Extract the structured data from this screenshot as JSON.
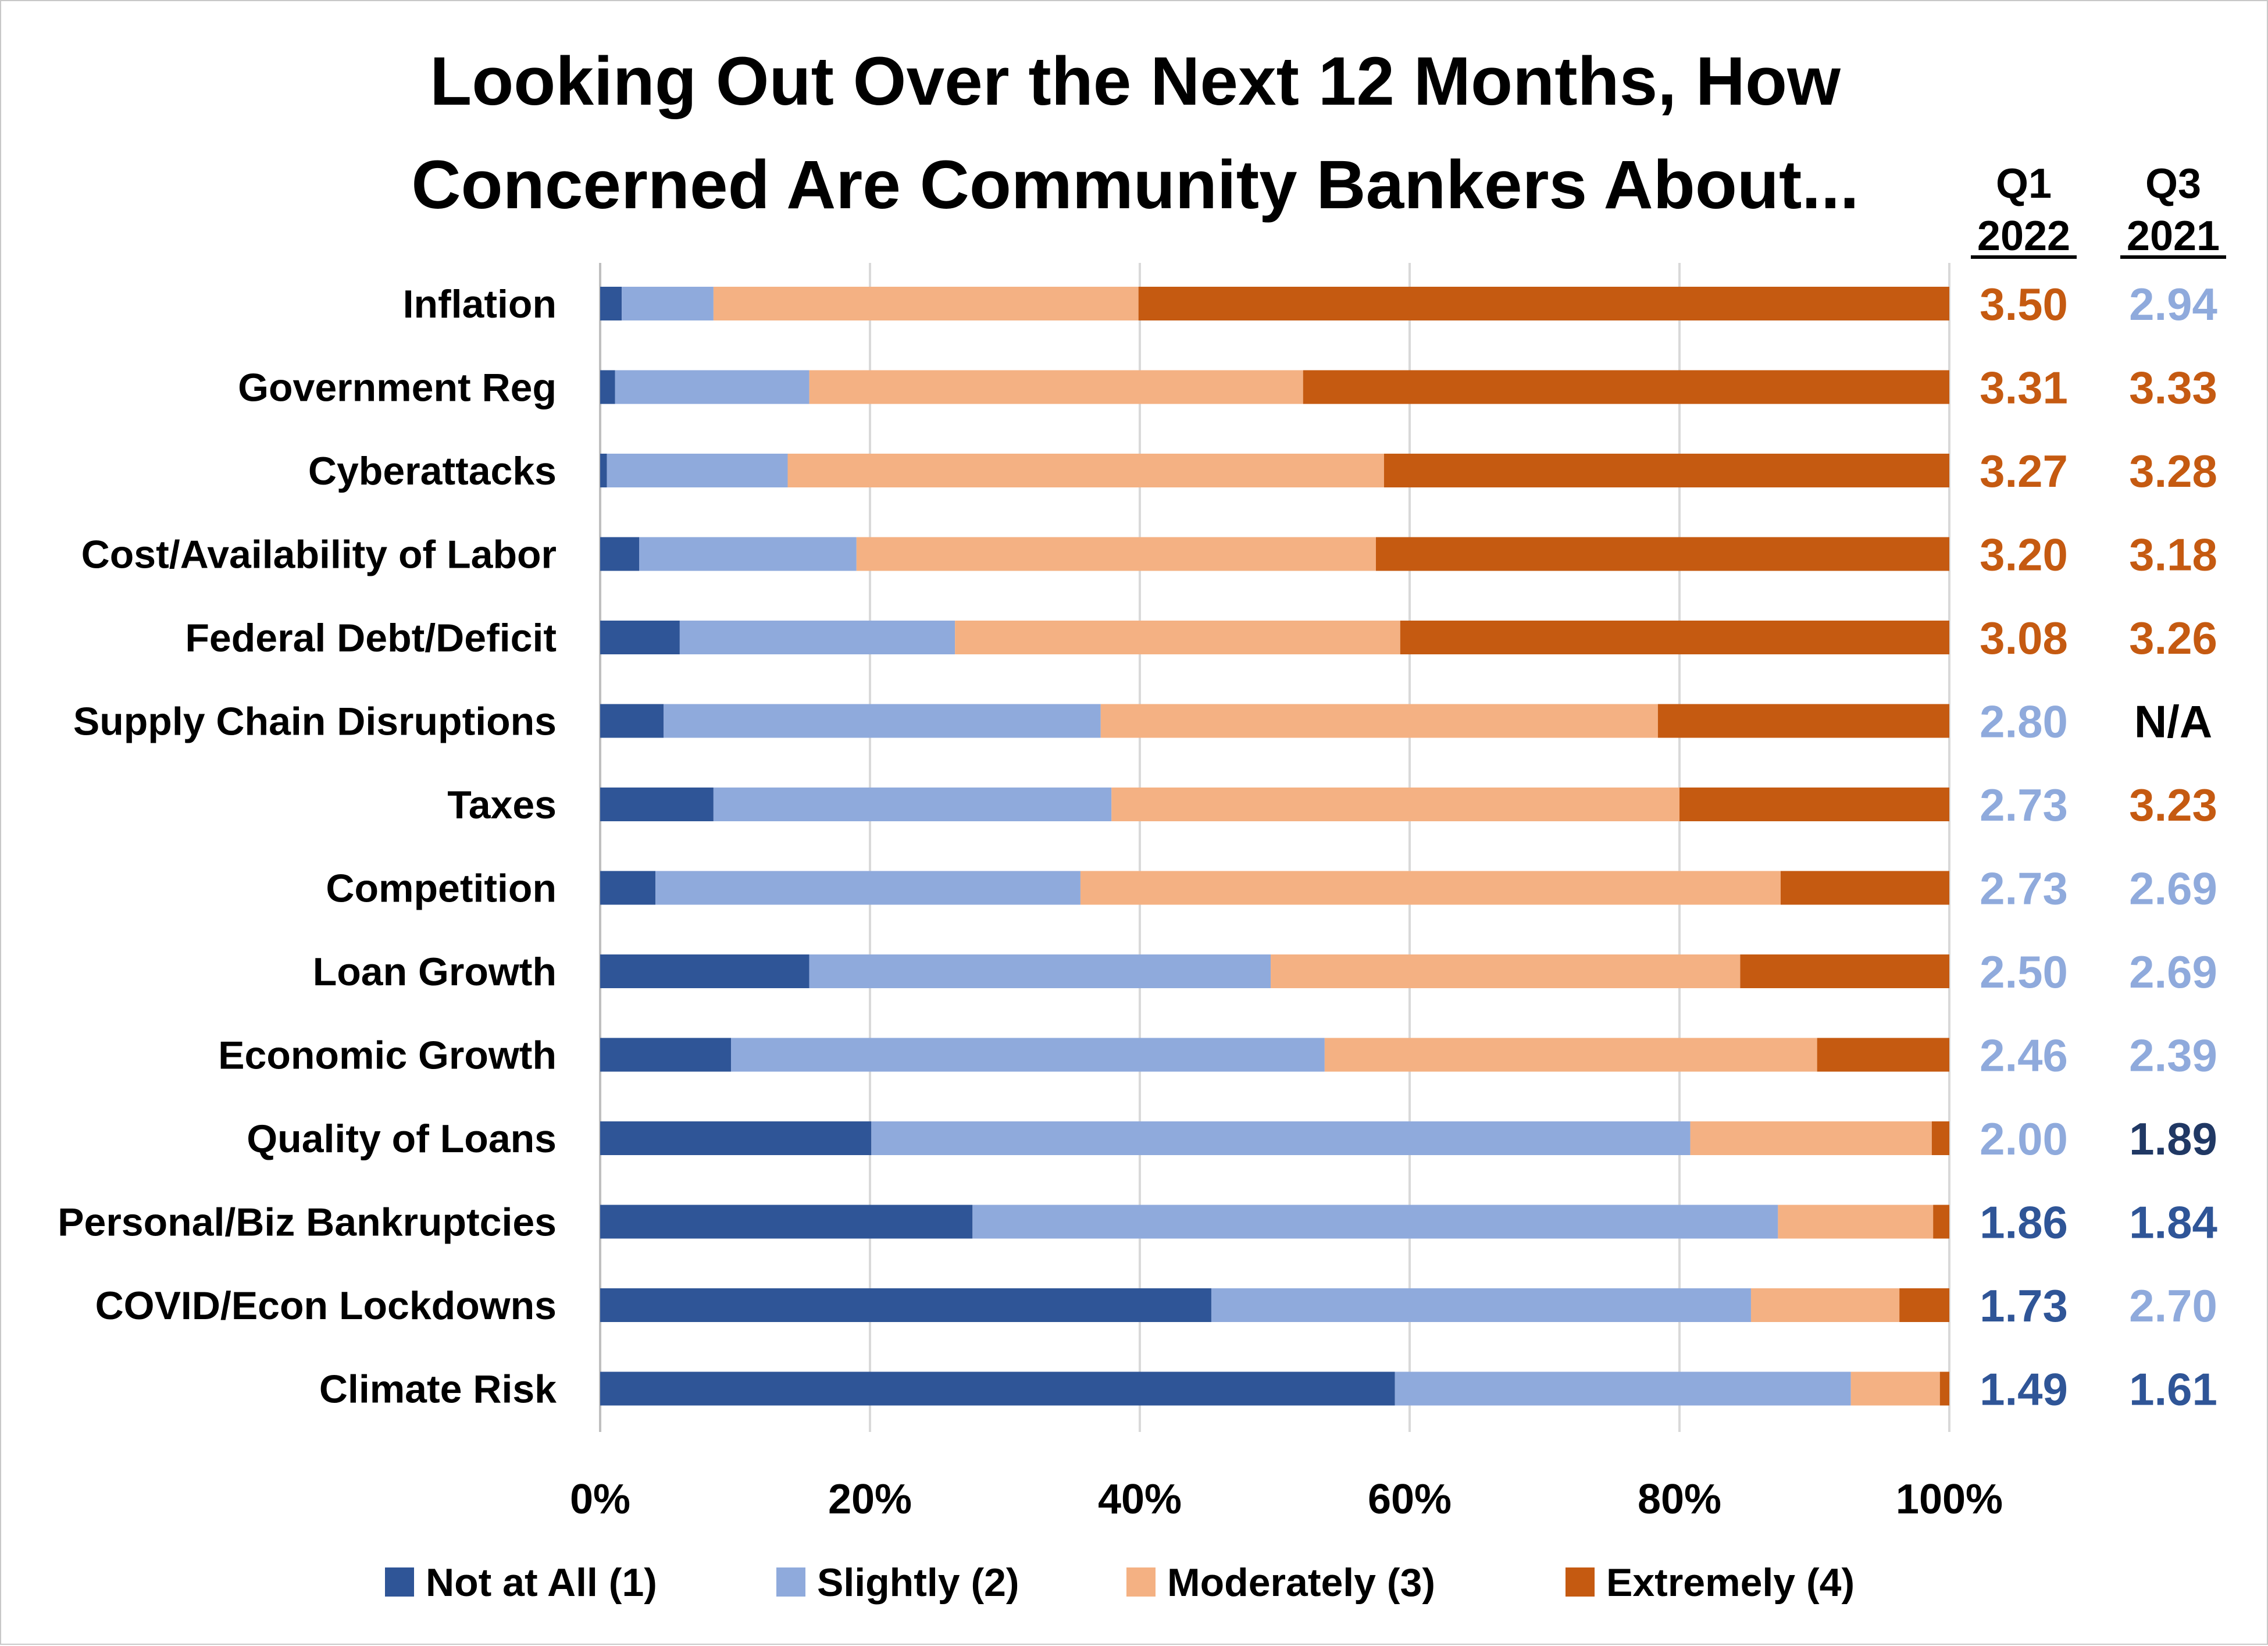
{
  "chart_data": {
    "type": "bar",
    "orientation": "horizontal",
    "stacked": "percent",
    "title_lines": [
      "Looking Out Over the Next 12 Months, How",
      "Concerned Are Community Bankers About..."
    ],
    "categories": [
      "Inflation",
      "Government Reg",
      "Cyberattacks",
      "Cost/Availability of Labor",
      "Federal Debt/Deficit",
      "Supply Chain Disruptions",
      "Taxes",
      "Competition",
      "Loan Growth",
      "Economic Growth",
      "Quality of Loans",
      "Personal/Biz Bankruptcies",
      "COVID/Econ Lockdowns",
      "Climate Risk"
    ],
    "series": [
      {
        "name": "Not at All (1)",
        "color": "#2f5597",
        "values": [
          1.6,
          1.1,
          0.5,
          2.9,
          5.9,
          4.7,
          8.4,
          4.1,
          15.5,
          9.7,
          20.1,
          27.6,
          45.3,
          58.9
        ]
      },
      {
        "name": "Slightly (2)",
        "color": "#8faadc",
        "values": [
          6.8,
          14.4,
          13.4,
          16.1,
          20.4,
          32.4,
          29.5,
          31.5,
          34.2,
          44.0,
          60.7,
          59.7,
          40.0,
          33.8
        ]
      },
      {
        "name": "Moderately (3)",
        "color": "#f4b183",
        "values": [
          31.5,
          36.6,
          44.2,
          38.5,
          33.0,
          41.3,
          42.1,
          51.9,
          34.8,
          36.5,
          17.9,
          11.5,
          11.0,
          6.6
        ]
      },
      {
        "name": "Extremely (4)",
        "color": "#c55a11",
        "values": [
          60.1,
          47.9,
          41.9,
          42.5,
          40.7,
          21.6,
          20.0,
          12.5,
          15.5,
          9.8,
          1.3,
          1.2,
          3.7,
          0.7
        ]
      }
    ],
    "xlim": [
      0,
      100
    ],
    "x_ticks": [
      "0%",
      "20%",
      "40%",
      "60%",
      "80%",
      "100%"
    ],
    "grid": true,
    "legend_position": "bottom",
    "score_columns": [
      {
        "header_top": "Q1",
        "header_bottom": "2022",
        "values": [
          {
            "text": "3.50",
            "color": "#c55a11"
          },
          {
            "text": "3.31",
            "color": "#c55a11"
          },
          {
            "text": "3.27",
            "color": "#c55a11"
          },
          {
            "text": "3.20",
            "color": "#c55a11"
          },
          {
            "text": "3.08",
            "color": "#c55a11"
          },
          {
            "text": "2.80",
            "color": "#8faadc"
          },
          {
            "text": "2.73",
            "color": "#8faadc"
          },
          {
            "text": "2.73",
            "color": "#8faadc"
          },
          {
            "text": "2.50",
            "color": "#8faadc"
          },
          {
            "text": "2.46",
            "color": "#8faadc"
          },
          {
            "text": "2.00",
            "color": "#8faadc"
          },
          {
            "text": "1.86",
            "color": "#2f5597"
          },
          {
            "text": "1.73",
            "color": "#2f5597"
          },
          {
            "text": "1.49",
            "color": "#2f5597"
          }
        ]
      },
      {
        "header_top": "Q3",
        "header_bottom": "2021",
        "values": [
          {
            "text": "2.94",
            "color": "#8faadc"
          },
          {
            "text": "3.33",
            "color": "#c55a11"
          },
          {
            "text": "3.28",
            "color": "#c55a11"
          },
          {
            "text": "3.18",
            "color": "#c55a11"
          },
          {
            "text": "3.26",
            "color": "#c55a11"
          },
          {
            "text": "N/A",
            "color": "#000000"
          },
          {
            "text": "3.23",
            "color": "#c55a11"
          },
          {
            "text": "2.69",
            "color": "#8faadc"
          },
          {
            "text": "2.69",
            "color": "#8faadc"
          },
          {
            "text": "2.39",
            "color": "#8faadc"
          },
          {
            "text": "1.89",
            "color": "#203864"
          },
          {
            "text": "1.84",
            "color": "#2f5597"
          },
          {
            "text": "2.70",
            "color": "#8faadc"
          },
          {
            "text": "1.61",
            "color": "#2f5597"
          }
        ]
      }
    ]
  }
}
